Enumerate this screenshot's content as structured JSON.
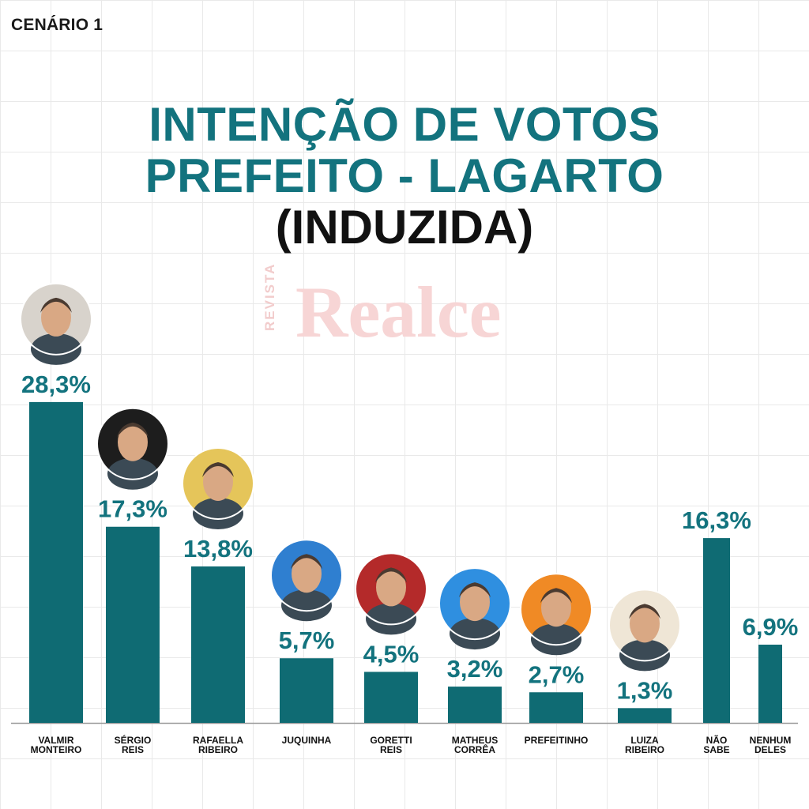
{
  "header": {
    "scenario": "CENÁRIO 1",
    "title_line1": "INTENÇÃO DE VOTOS",
    "title_line2": "PREFEITO - LAGARTO",
    "title_line3": "(INDUZIDA)"
  },
  "watermark": {
    "small": "REVISTA",
    "big": "Realce"
  },
  "colors": {
    "bar": "#0f6b73",
    "accent_text": "#13737e"
  },
  "chart_data": {
    "type": "bar",
    "title": "INTENÇÃO DE VOTOS PREFEITO - LAGARTO (INDUZIDA)",
    "xlabel": "",
    "ylabel": "",
    "unit": "%",
    "categories": [
      [
        "VALMIR",
        "MONTEIRO"
      ],
      [
        "SÉRGIO",
        "REIS"
      ],
      [
        "RAFAELLA",
        "RIBEIRO"
      ],
      [
        "JUQUINHA"
      ],
      [
        "GORETTI",
        "REIS"
      ],
      [
        "MATHEUS",
        "CORRÊA"
      ],
      [
        "PREFEITINHO"
      ],
      [
        "LUIZA",
        "RIBEIRO"
      ],
      [
        "NÃO",
        "SABE"
      ],
      [
        "NENHUM",
        "DELES"
      ]
    ],
    "values": [
      28.3,
      17.3,
      13.8,
      5.7,
      4.5,
      3.2,
      2.7,
      1.3,
      16.3,
      6.9
    ],
    "labels": [
      "28,3%",
      "17,3%",
      "13,8%",
      "5,7%",
      "4,5%",
      "3,2%",
      "2,7%",
      "1,3%",
      "16,3%",
      "6,9%"
    ],
    "has_photo": [
      true,
      true,
      true,
      true,
      true,
      true,
      true,
      true,
      false,
      false
    ],
    "photo_bg": [
      "#d8d3cc",
      "#1d1d1d",
      "#e5c55a",
      "#2f7fd0",
      "#b42a2a",
      "#2f8fe0",
      "#f08a25",
      "#efe6d6",
      "",
      ""
    ],
    "grid": true,
    "legend": "none"
  }
}
